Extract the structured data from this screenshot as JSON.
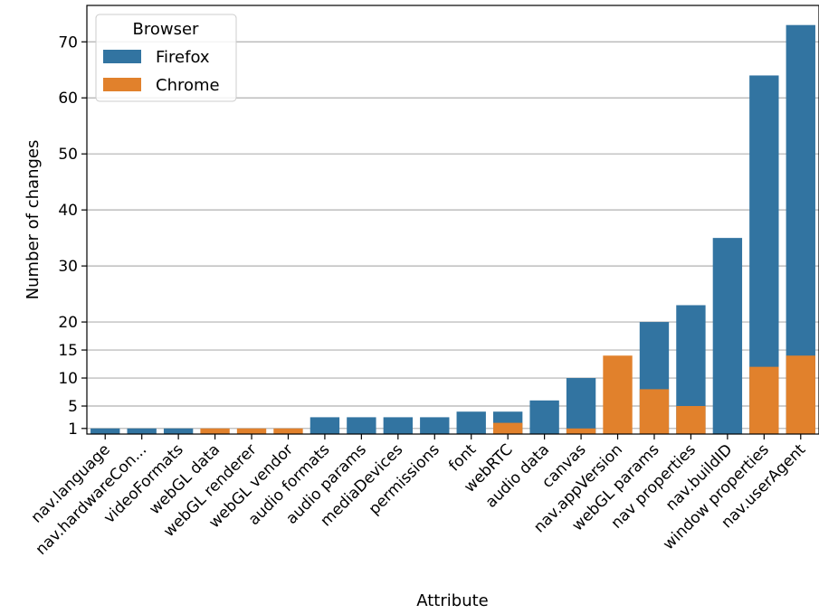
{
  "chart_data": {
    "type": "bar",
    "stacked": false,
    "overlaid": true,
    "xlabel": "Attribute",
    "ylabel": "Number of changes",
    "ylim": [
      0,
      76.5
    ],
    "yticks": [
      1,
      5,
      10,
      15,
      20,
      30,
      40,
      50,
      60,
      70
    ],
    "grid": "horizontal",
    "categories": [
      "nav.language",
      "nav.hardwareCon...",
      "videoFormats",
      "webGL data",
      "webGL renderer",
      "webGL vendor",
      "audio formats",
      "audio params",
      "mediaDevices",
      "permissions",
      "font",
      "webRTC",
      "audio data",
      "canvas",
      "nav.appVersion",
      "webGL params",
      "nav properties",
      "nav.buildID",
      "window properties",
      "nav.userAgent"
    ],
    "series": [
      {
        "name": "Firefox",
        "color": "#3274a1",
        "values": [
          1,
          1,
          1,
          0,
          0,
          0,
          3,
          3,
          3,
          3,
          4,
          4,
          6,
          10,
          0,
          20,
          23,
          35,
          64,
          73
        ]
      },
      {
        "name": "Chrome",
        "color": "#e1812c",
        "values": [
          0,
          0,
          0,
          1,
          1,
          1,
          0,
          0,
          0,
          0,
          0,
          2,
          0,
          1,
          14,
          8,
          5,
          0,
          12,
          14
        ]
      }
    ],
    "legend": {
      "title": "Browser",
      "position": "top-left"
    }
  }
}
